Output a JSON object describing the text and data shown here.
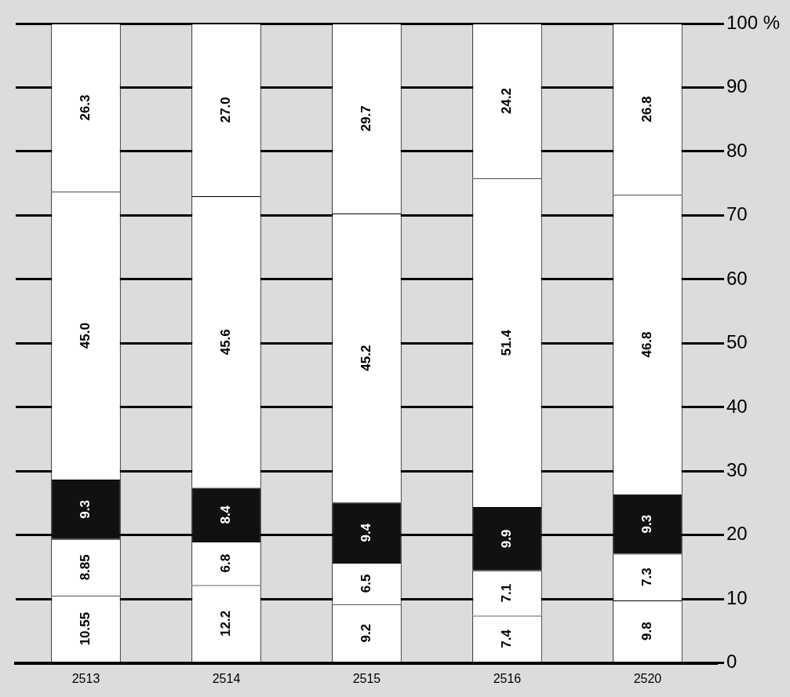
{
  "chart_data": {
    "type": "bar",
    "stacked": true,
    "categories": [
      "2513",
      "2514",
      "2515",
      "2516",
      "2520"
    ],
    "series": [
      {
        "color": "#ffffff",
        "values": [
          10.55,
          12.2,
          9.2,
          7.4,
          9.8
        ],
        "value_labels": [
          "10.55",
          "12.2",
          "9.2",
          "7.4",
          "9.8"
        ]
      },
      {
        "color": "#ffffff",
        "values": [
          8.85,
          6.8,
          6.5,
          7.1,
          7.3
        ],
        "value_labels": [
          "8.85",
          "6.8",
          "6.5",
          "7.1",
          "7.3"
        ]
      },
      {
        "color": "#111111",
        "values": [
          9.3,
          8.4,
          9.4,
          9.9,
          9.3
        ],
        "value_labels": [
          "9.3",
          "8.4",
          "9.4",
          "9.9",
          "9.3"
        ]
      },
      {
        "color": "#ffffff",
        "values": [
          45.0,
          45.6,
          45.2,
          51.4,
          46.8
        ],
        "value_labels": [
          "45.0",
          "45.6",
          "45.2",
          "51.4",
          "46.8"
        ]
      },
      {
        "color": "#ffffff",
        "values": [
          26.3,
          27.0,
          29.7,
          24.2,
          26.8
        ],
        "value_labels": [
          "26.3",
          "27.0",
          "29.7",
          "24.2",
          "26.8"
        ]
      }
    ],
    "ylim": [
      0,
      100
    ],
    "yticks": [
      0,
      10,
      20,
      30,
      40,
      50,
      60,
      70,
      80,
      90,
      {
        "value": 100,
        "label": "100 %"
      }
    ],
    "grid": "y",
    "legend": false
  }
}
